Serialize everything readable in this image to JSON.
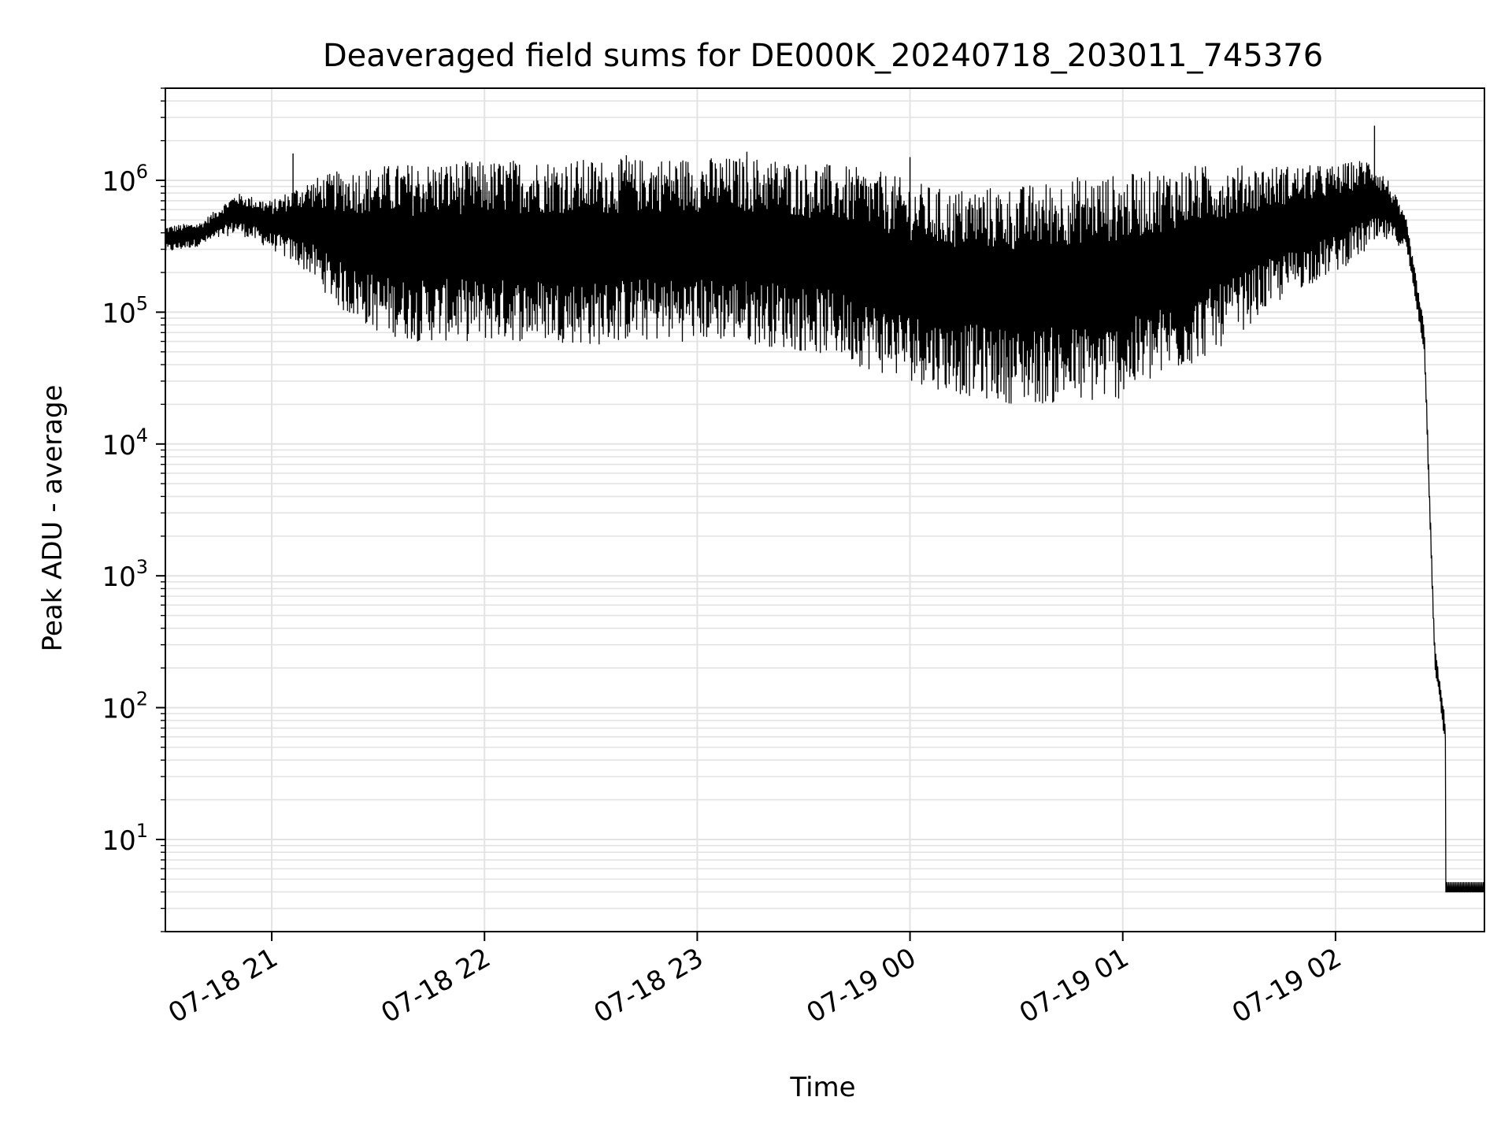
{
  "chart_data": {
    "type": "line",
    "title": "Deaveraged field sums for DE000K_20240718_203011_745376",
    "xlabel": "Time",
    "ylabel": "Peak ADU - average",
    "yscale": "log",
    "grid": true,
    "xlim": [
      "2024-07-18 20:30",
      "2024-07-19 02:42"
    ],
    "ylim": [
      2,
      5000000
    ],
    "x_ticks": [
      {
        "value": "2024-07-18 21:00",
        "label": "07-18 21"
      },
      {
        "value": "2024-07-18 22:00",
        "label": "07-18 22"
      },
      {
        "value": "2024-07-18 23:00",
        "label": "07-18 23"
      },
      {
        "value": "2024-07-19 00:00",
        "label": "07-19 00"
      },
      {
        "value": "2024-07-19 01:00",
        "label": "07-19 01"
      },
      {
        "value": "2024-07-19 02:00",
        "label": "07-19 02"
      }
    ],
    "y_ticks": [
      {
        "value": 10,
        "base": "10",
        "exp": "1"
      },
      {
        "value": 100,
        "base": "10",
        "exp": "2"
      },
      {
        "value": 1000,
        "base": "10",
        "exp": "3"
      },
      {
        "value": 10000,
        "base": "10",
        "exp": "4"
      },
      {
        "value": 100000,
        "base": "10",
        "exp": "5"
      },
      {
        "value": 1000000,
        "base": "10",
        "exp": "6"
      }
    ],
    "series": [
      {
        "color": "#000000",
        "upper_envelope": {
          "x": [
            "2024-07-18 20:30",
            "2024-07-18 20:40",
            "2024-07-18 20:50",
            "2024-07-18 21:00",
            "2024-07-18 21:10",
            "2024-07-18 21:20",
            "2024-07-18 21:30",
            "2024-07-18 21:40",
            "2024-07-18 21:50",
            "2024-07-18 22:00",
            "2024-07-18 22:10",
            "2024-07-18 22:20",
            "2024-07-18 22:30",
            "2024-07-18 22:40",
            "2024-07-18 22:50",
            "2024-07-18 23:00",
            "2024-07-18 23:10",
            "2024-07-18 23:20",
            "2024-07-18 23:30",
            "2024-07-18 23:40",
            "2024-07-18 23:50",
            "2024-07-19 00:00",
            "2024-07-19 00:10",
            "2024-07-19 00:20",
            "2024-07-19 00:30",
            "2024-07-19 00:40",
            "2024-07-19 00:50",
            "2024-07-19 01:00",
            "2024-07-19 01:10",
            "2024-07-19 01:20",
            "2024-07-19 01:30",
            "2024-07-19 01:40",
            "2024-07-19 01:50",
            "2024-07-19 02:00",
            "2024-07-19 02:10",
            "2024-07-19 02:15",
            "2024-07-19 02:20",
            "2024-07-19 02:25",
            "2024-07-19 02:28",
            "2024-07-19 02:31",
            "2024-07-19 02:42"
          ],
          "y": [
            450000,
            480000,
            800000,
            700000,
            1000000,
            1200000,
            1300000,
            1350000,
            1400000,
            1400000,
            1450000,
            1450000,
            1450000,
            1450000,
            1500000,
            1500000,
            1500000,
            1500000,
            1400000,
            1300000,
            1200000,
            1000000,
            850000,
            900000,
            900000,
            1000000,
            1100000,
            1100000,
            1200000,
            1300000,
            1300000,
            1300000,
            1300000,
            1300000,
            1500000,
            1000000,
            500000,
            80000,
            300,
            80,
            5
          ]
        },
        "lower_envelope": {
          "x": [
            "2024-07-18 20:30",
            "2024-07-18 20:40",
            "2024-07-18 20:50",
            "2024-07-18 21:00",
            "2024-07-18 21:10",
            "2024-07-18 21:20",
            "2024-07-18 21:30",
            "2024-07-18 21:40",
            "2024-07-18 21:50",
            "2024-07-18 22:00",
            "2024-07-18 22:10",
            "2024-07-18 22:20",
            "2024-07-18 22:30",
            "2024-07-18 22:40",
            "2024-07-18 22:50",
            "2024-07-18 23:00",
            "2024-07-18 23:10",
            "2024-07-18 23:20",
            "2024-07-18 23:30",
            "2024-07-18 23:40",
            "2024-07-18 23:50",
            "2024-07-19 00:00",
            "2024-07-19 00:10",
            "2024-07-19 00:20",
            "2024-07-19 00:30",
            "2024-07-19 00:40",
            "2024-07-19 00:50",
            "2024-07-19 01:00",
            "2024-07-19 01:10",
            "2024-07-19 01:20",
            "2024-07-19 01:30",
            "2024-07-19 01:40",
            "2024-07-19 01:50",
            "2024-07-19 02:00",
            "2024-07-19 02:10",
            "2024-07-19 02:15",
            "2024-07-19 02:20",
            "2024-07-19 02:25",
            "2024-07-19 02:28",
            "2024-07-19 02:31",
            "2024-07-19 02:42"
          ],
          "y": [
            280000,
            320000,
            400000,
            300000,
            200000,
            100000,
            70000,
            60000,
            60000,
            60000,
            60000,
            60000,
            55000,
            60000,
            60000,
            60000,
            60000,
            55000,
            50000,
            45000,
            35000,
            30000,
            25000,
            22000,
            20000,
            20000,
            20000,
            22000,
            30000,
            40000,
            60000,
            100000,
            150000,
            200000,
            300000,
            350000,
            300000,
            50000,
            200,
            50,
            4
          ]
        },
        "spikes": [
          {
            "x": "2024-07-18 21:06",
            "y": 1600000
          },
          {
            "x": "2024-07-18 23:14",
            "y": 1650000
          },
          {
            "x": "2024-07-19 02:11",
            "y": 2600000
          },
          {
            "x": "2024-07-19 00:00",
            "y": 1500000
          },
          {
            "x": "2024-07-18 22:40",
            "y": 1550000
          }
        ],
        "noise_floor": 4
      }
    ]
  }
}
